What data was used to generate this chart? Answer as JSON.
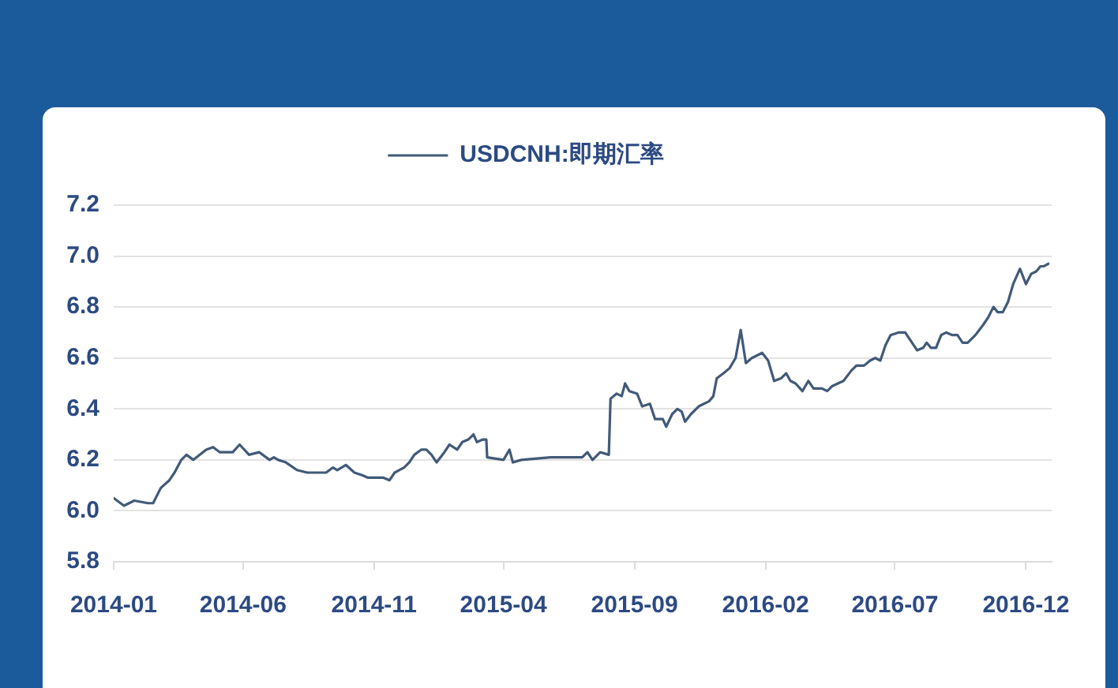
{
  "chart_data": {
    "type": "line",
    "legend": "top",
    "grid": "y",
    "marker": "none",
    "xlim": [
      "2014-01-01",
      "2016-12-31"
    ],
    "xticks": [
      "2014-01",
      "2014-06",
      "2014-11",
      "2015-04",
      "2015-09",
      "2016-02",
      "2016-07",
      "2016-12"
    ],
    "ylim": [
      5.8,
      7.2
    ],
    "yticks": [
      5.8,
      {
        "value": 6,
        "label": "6.0"
      },
      6.2,
      6.4,
      6.6,
      6.8,
      {
        "value": 7,
        "label": "7.0"
      },
      7.2
    ],
    "x": [
      "2014-01-01",
      "2014-01-13",
      "2014-01-25",
      "2014-02-10",
      "2014-02-16",
      "2014-02-25",
      "2014-03-07",
      "2014-03-13",
      "2014-03-21",
      "2014-03-27",
      "2014-04-04",
      "2014-04-19",
      "2014-04-27",
      "2014-05-05",
      "2014-05-20",
      "2014-05-28",
      "2014-06-08",
      "2014-06-20",
      "2014-07-02",
      "2014-07-07",
      "2014-07-12",
      "2014-07-21",
      "2014-08-03",
      "2014-08-15",
      "2014-09-06",
      "2014-09-14",
      "2014-09-19",
      "2014-09-29",
      "2014-10-09",
      "2014-10-18",
      "2014-10-25",
      "2014-11-12",
      "2014-11-19",
      "2014-11-25",
      "2014-12-06",
      "2014-12-12",
      "2014-12-18",
      "2014-12-26",
      "2015-01-01",
      "2015-01-07",
      "2015-01-13",
      "2015-01-22",
      "2015-01-28",
      "2015-02-06",
      "2015-02-12",
      "2015-02-19",
      "2015-02-25",
      "2015-03-01",
      "2015-03-08",
      "2015-03-12",
      "2015-03-13",
      "2015-04-01",
      "2015-04-08",
      "2015-04-12",
      "2015-04-22",
      "2015-05-26",
      "2015-07-02",
      "2015-07-08",
      "2015-07-14",
      "2015-07-23",
      "2015-08-02",
      "2015-08-04",
      "2015-08-11",
      "2015-08-17",
      "2015-08-21",
      "2015-08-26",
      "2015-09-04",
      "2015-09-10",
      "2015-09-19",
      "2015-09-25",
      "2015-10-04",
      "2015-10-08",
      "2015-10-15",
      "2015-10-21",
      "2015-10-26",
      "2015-10-30",
      "2015-11-06",
      "2015-11-15",
      "2015-11-27",
      "2015-12-02",
      "2015-12-06",
      "2015-12-14",
      "2015-12-21",
      "2015-12-28",
      "2016-01-03",
      "2016-01-09",
      "2016-01-16",
      "2016-01-28",
      "2016-02-04",
      "2016-02-11",
      "2016-02-19",
      "2016-02-25",
      "2016-03-01",
      "2016-03-07",
      "2016-03-15",
      "2016-03-22",
      "2016-03-28",
      "2016-04-07",
      "2016-04-13",
      "2016-04-19",
      "2016-05-02",
      "2016-05-11",
      "2016-05-17",
      "2016-05-26",
      "2016-06-02",
      "2016-06-08",
      "2016-06-14",
      "2016-06-20",
      "2016-06-26",
      "2016-07-05",
      "2016-07-13",
      "2016-07-21",
      "2016-07-27",
      "2016-08-03",
      "2016-08-07",
      "2016-08-12",
      "2016-08-18",
      "2016-08-24",
      "2016-08-30",
      "2016-09-06",
      "2016-09-12",
      "2016-09-18",
      "2016-09-24",
      "2016-10-03",
      "2016-10-12",
      "2016-10-18",
      "2016-10-24",
      "2016-10-29",
      "2016-11-04",
      "2016-11-10",
      "2016-11-16",
      "2016-11-24",
      "2016-12-01",
      "2016-12-07",
      "2016-12-13",
      "2016-12-18",
      "2016-12-22",
      "2016-12-27"
    ],
    "series": [
      {
        "name": "USDCNH:即期汇率",
        "color": "#415a78",
        "values": [
          6.05,
          6.02,
          6.04,
          6.03,
          6.03,
          6.09,
          6.12,
          6.15,
          6.2,
          6.22,
          6.2,
          6.24,
          6.25,
          6.23,
          6.23,
          6.26,
          6.22,
          6.23,
          6.2,
          6.21,
          6.2,
          6.19,
          6.16,
          6.15,
          6.15,
          6.17,
          6.16,
          6.18,
          6.15,
          6.14,
          6.13,
          6.13,
          6.12,
          6.15,
          6.17,
          6.19,
          6.22,
          6.24,
          6.24,
          6.22,
          6.19,
          6.23,
          6.26,
          6.24,
          6.27,
          6.28,
          6.3,
          6.27,
          6.28,
          6.28,
          6.21,
          6.2,
          6.24,
          6.19,
          6.2,
          6.21,
          6.21,
          6.23,
          6.2,
          6.23,
          6.22,
          6.44,
          6.46,
          6.45,
          6.5,
          6.47,
          6.46,
          6.41,
          6.42,
          6.36,
          6.36,
          6.33,
          6.38,
          6.4,
          6.39,
          6.35,
          6.38,
          6.41,
          6.43,
          6.45,
          6.52,
          6.54,
          6.56,
          6.6,
          6.71,
          6.58,
          6.6,
          6.62,
          6.59,
          6.51,
          6.52,
          6.54,
          6.51,
          6.5,
          6.47,
          6.51,
          6.48,
          6.48,
          6.47,
          6.49,
          6.51,
          6.55,
          6.57,
          6.57,
          6.59,
          6.6,
          6.59,
          6.65,
          6.69,
          6.7,
          6.7,
          6.66,
          6.63,
          6.64,
          6.66,
          6.64,
          6.64,
          6.69,
          6.7,
          6.69,
          6.69,
          6.66,
          6.66,
          6.69,
          6.73,
          6.76,
          6.8,
          6.78,
          6.78,
          6.82,
          6.89,
          6.95,
          6.89,
          6.93,
          6.94,
          6.96,
          6.96,
          6.97
        ]
      }
    ]
  }
}
